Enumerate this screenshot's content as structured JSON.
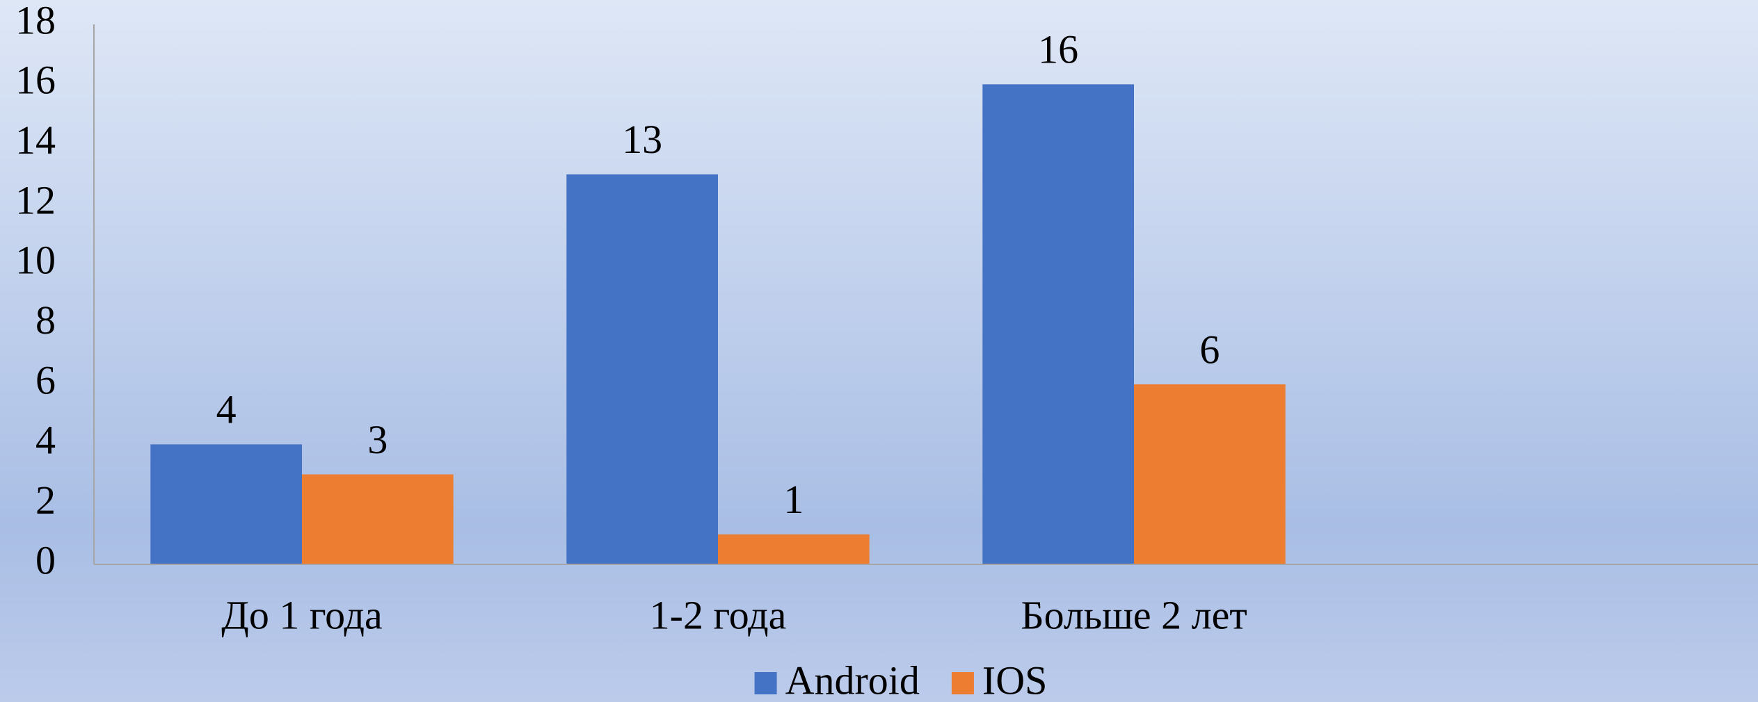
{
  "chart_data": {
    "type": "bar",
    "categories": [
      "До 1 года",
      "1-2 года",
      "Больше 2 лет",
      null
    ],
    "series": [
      {
        "name": "Android",
        "color": "#4472c4",
        "values": [
          4,
          13,
          16,
          null
        ]
      },
      {
        "name": "IOS",
        "color": "#ed7d31",
        "values": [
          3,
          1,
          6,
          null
        ]
      }
    ],
    "ylim": [
      0,
      18
    ],
    "yticks": [
      0,
      2,
      4,
      6,
      8,
      10,
      12,
      14,
      16,
      18
    ],
    "grid": false,
    "legend": "bottom"
  }
}
